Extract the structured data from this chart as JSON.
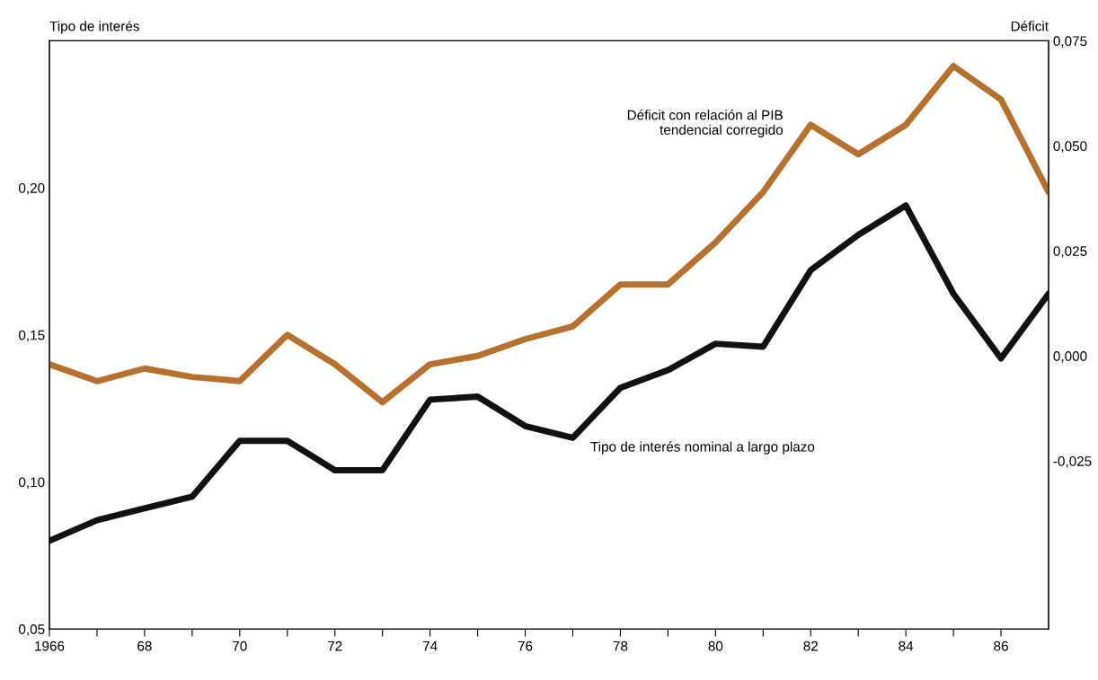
{
  "chart_data": {
    "type": "line",
    "ylabel": "Tipo de interés",
    "y2label": "Déficit",
    "x": [
      1966,
      1967,
      1968,
      1969,
      1970,
      1971,
      1972,
      1973,
      1974,
      1975,
      1976,
      1977,
      1978,
      1979,
      1980,
      1981,
      1982,
      1983,
      1984,
      1985,
      1986,
      1987
    ],
    "series": [
      {
        "color": "#111111",
        "values": [
          0.08,
          0.087,
          0.091,
          0.095,
          0.114,
          0.114,
          0.104,
          0.104,
          0.128,
          0.129,
          0.119,
          0.115,
          0.132,
          0.138,
          0.147,
          0.146,
          0.172,
          0.184,
          0.194,
          0.164,
          0.142,
          0.164
        ]
      },
      {
        "color": "#b8702c",
        "axis": "y2",
        "values": [
          -0.002,
          -0.006,
          -0.003,
          -0.005,
          -0.006,
          0.005,
          -0.002,
          -0.011,
          -0.002,
          0.0,
          0.004,
          0.007,
          0.017,
          0.017,
          0.027,
          0.039,
          0.055,
          0.048,
          0.055,
          0.069,
          0.061,
          0.039
        ]
      }
    ],
    "xlim": [
      1966,
      1987
    ],
    "xticks": [
      {
        "value": 1966,
        "label": "1966"
      },
      {
        "value": 1967,
        "label": null
      },
      {
        "value": 1968,
        "label": "68"
      },
      {
        "value": 1969,
        "label": null
      },
      {
        "value": 1970,
        "label": "70"
      },
      {
        "value": 1971,
        "label": null
      },
      {
        "value": 1972,
        "label": "72"
      },
      {
        "value": 1973,
        "label": null
      },
      {
        "value": 1974,
        "label": "74"
      },
      {
        "value": 1975,
        "label": null
      },
      {
        "value": 1976,
        "label": "76"
      },
      {
        "value": 1977,
        "label": null
      },
      {
        "value": 1978,
        "label": "78"
      },
      {
        "value": 1979,
        "label": null
      },
      {
        "value": 1980,
        "label": "80"
      },
      {
        "value": 1981,
        "label": null
      },
      {
        "value": 1982,
        "label": "82"
      },
      {
        "value": 1983,
        "label": null
      },
      {
        "value": 1984,
        "label": "84"
      },
      {
        "value": 1985,
        "label": null
      },
      {
        "value": 1986,
        "label": "86"
      }
    ],
    "ylim": [
      0.05,
      0.25
    ],
    "yticks": [
      {
        "value": 0.05,
        "label": "0,05"
      },
      {
        "value": 0.1,
        "label": "0,10"
      },
      {
        "value": 0.15,
        "label": "0,15"
      },
      {
        "value": 0.2,
        "label": "0,20"
      }
    ],
    "y2lim": [
      -0.065,
      0.075
    ],
    "y2ticks": [
      {
        "value": -0.025,
        "label": "-0,025"
      },
      {
        "value": 0.0,
        "label": "0,000"
      },
      {
        "value": 0.025,
        "label": "0,025"
      },
      {
        "value": 0.05,
        "label": "0,050"
      },
      {
        "value": 0.075,
        "label": "0,075"
      }
    ],
    "annotations": [
      {
        "text": "Déficit con relación al PIB\ntendencial corregido",
        "x": 1982,
        "y": 0.221
      },
      {
        "text": "Tipo de interés nominal a largo plazo",
        "x": 1977,
        "y": 0.115
      }
    ],
    "grid": false,
    "marker": "none",
    "line_style": "solid"
  }
}
